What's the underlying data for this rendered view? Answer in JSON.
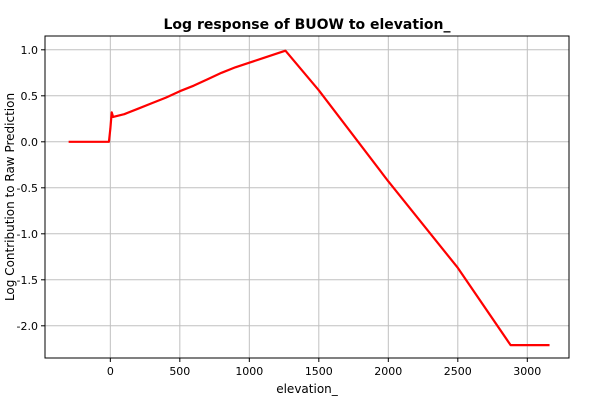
{
  "chart_data": {
    "type": "line",
    "title": "Log response of BUOW to elevation_",
    "xlabel": "elevation_",
    "ylabel": "Log Contribution to Raw Prediction",
    "xlim": [
      -470,
      3300
    ],
    "ylim": [
      -2.35,
      1.15
    ],
    "xticks": [
      0,
      500,
      1000,
      1500,
      2000,
      2500,
      3000
    ],
    "yticks": [
      1.0,
      0.5,
      0.0,
      -0.5,
      -1.0,
      -1.5,
      -2.0
    ],
    "ytick_labels": [
      "1.0",
      "0.5",
      "0.0",
      "-0.5",
      "-1.0",
      "-1.5",
      "-2.0"
    ],
    "grid": true,
    "series": [
      {
        "color": "#ff0000",
        "x": [
          -300,
          -10,
          0,
          10,
          20,
          100,
          200,
          300,
          400,
          500,
          600,
          700,
          800,
          900,
          1000,
          1100,
          1200,
          1260,
          1500,
          2000,
          2500,
          2880,
          3160
        ],
        "y": [
          0.0,
          0.0,
          0.14,
          0.32,
          0.27,
          0.3,
          0.36,
          0.42,
          0.48,
          0.55,
          0.61,
          0.68,
          0.75,
          0.81,
          0.86,
          0.91,
          0.96,
          0.99,
          0.56,
          -0.43,
          -1.37,
          -2.21,
          -2.21
        ]
      }
    ]
  }
}
